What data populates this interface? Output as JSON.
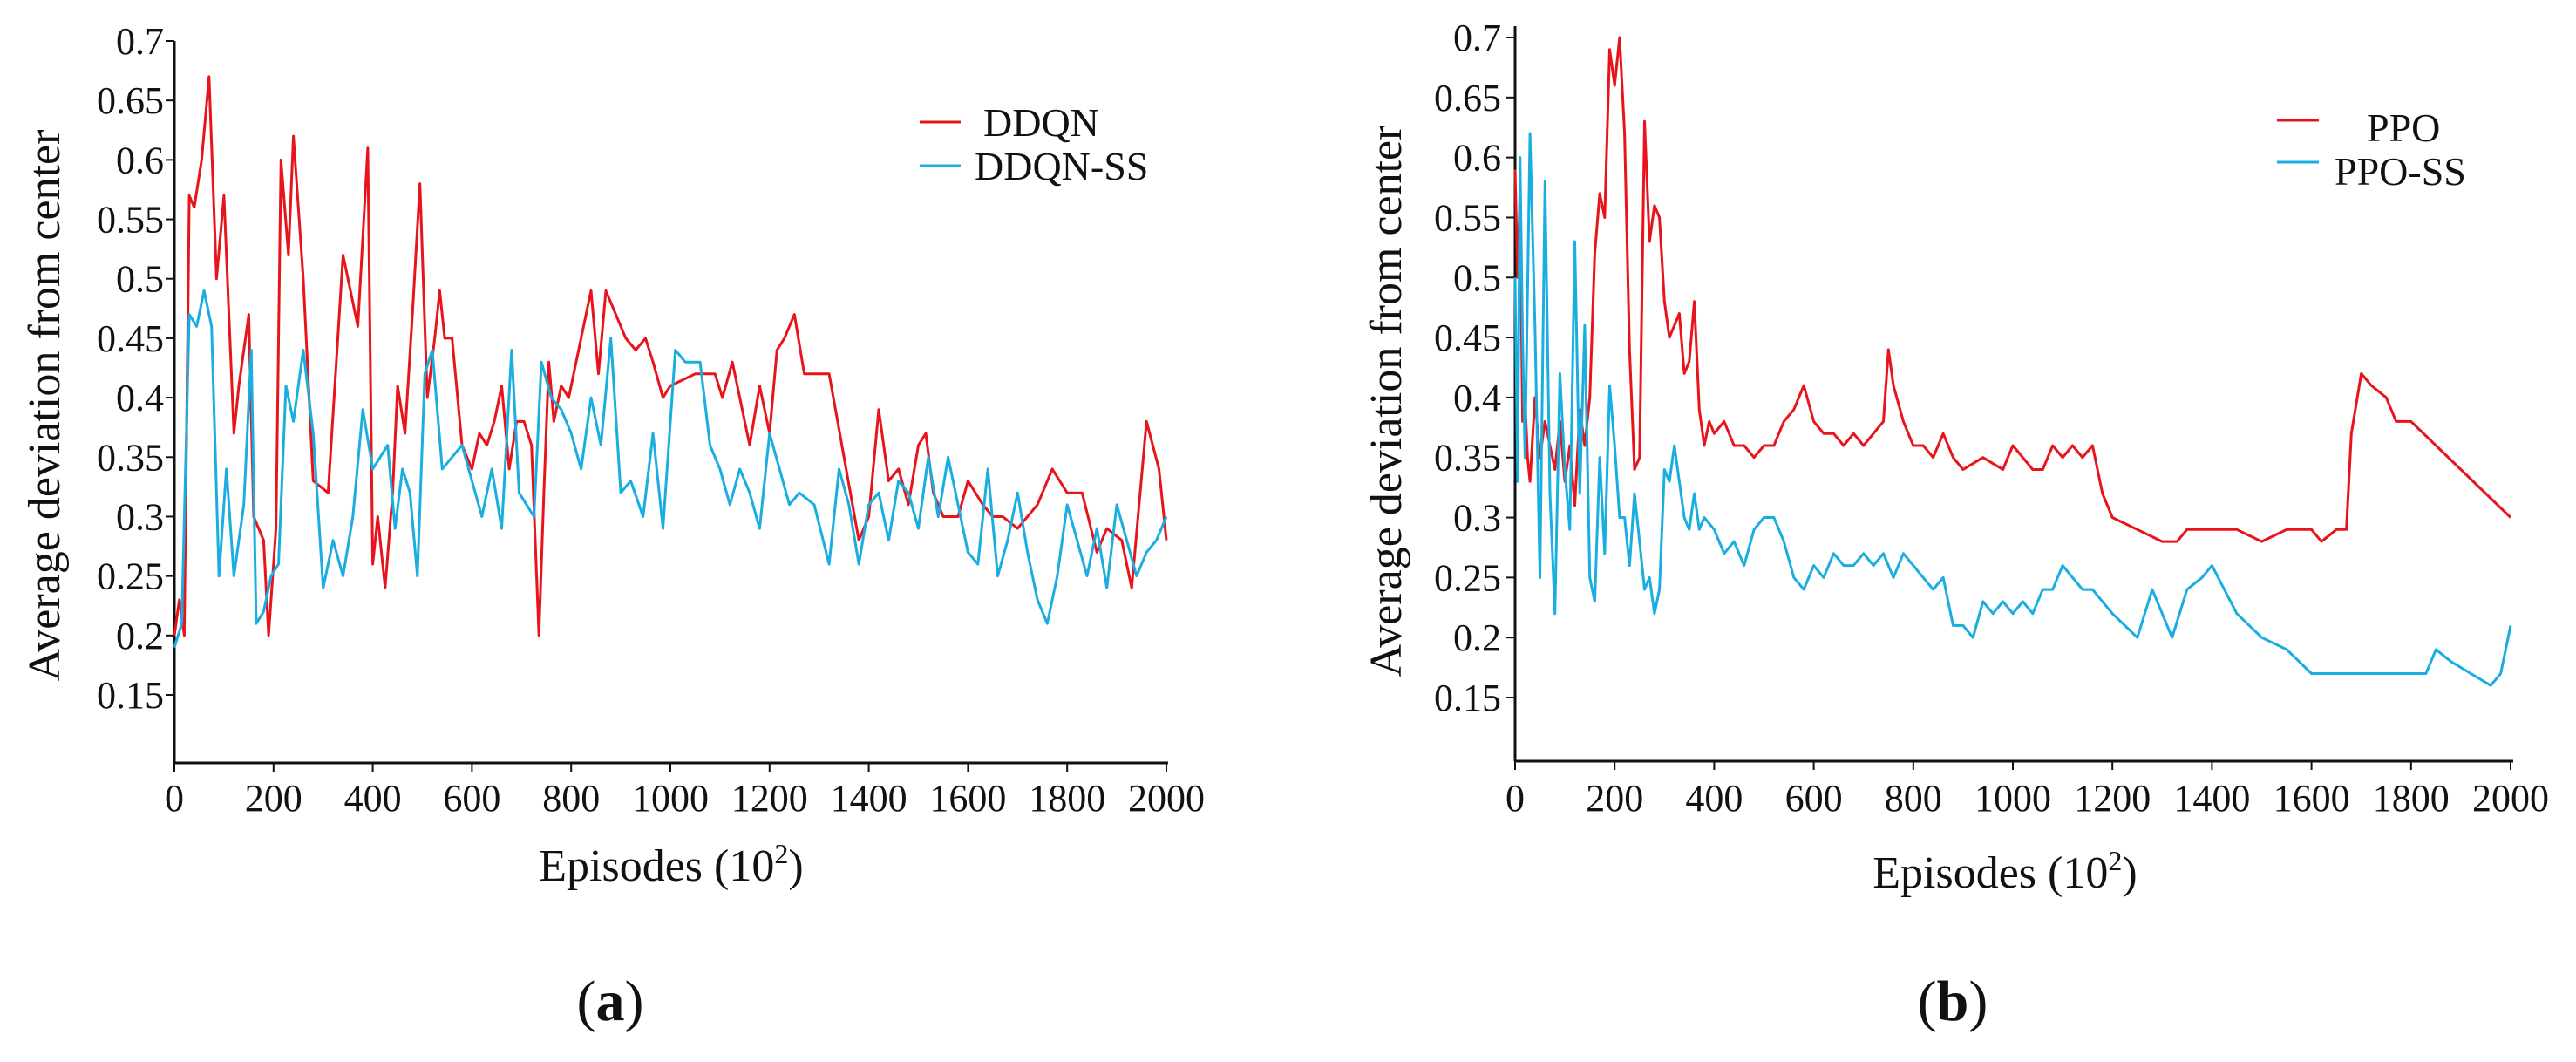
{
  "chart_data": [
    {
      "type": "line",
      "panel_label": "a",
      "xlabel": "Episodes (10",
      "xlabel_exponent": "2",
      "xlabel_close": ")",
      "ylabel": "Average deviation from center",
      "xlim": [
        0,
        2000
      ],
      "ylim": [
        0.1,
        0.7
      ],
      "xticks": [
        0,
        200,
        400,
        600,
        800,
        1000,
        1200,
        1400,
        1600,
        1800,
        2000
      ],
      "xtick_labels": [
        "0",
        "200",
        "400",
        "600",
        "800",
        "1000",
        "1200",
        "1400",
        "1600",
        "1800",
        "2000"
      ],
      "yticks": [
        0.15,
        0.2,
        0.25,
        0.3,
        0.35,
        0.4,
        0.45,
        0.5,
        0.55,
        0.6,
        0.65,
        0.7
      ],
      "ytick_labels": [
        "0.15",
        "0.2",
        "0.25",
        "0.3",
        "0.35",
        "0.4",
        "0.45",
        "0.5",
        "0.55",
        "0.6",
        "0.65",
        "0.7"
      ],
      "legend_position": "top-right",
      "series": [
        {
          "name": "DDQN",
          "color": "#e8141b",
          "x": [
            0,
            10,
            20,
            30,
            40,
            55,
            70,
            85,
            100,
            120,
            130,
            150,
            160,
            180,
            190,
            205,
            215,
            230,
            240,
            260,
            280,
            310,
            340,
            370,
            390,
            400,
            410,
            425,
            440,
            450,
            465,
            480,
            495,
            510,
            525,
            535,
            545,
            560,
            580,
            600,
            615,
            630,
            645,
            660,
            675,
            690,
            705,
            720,
            735,
            745,
            755,
            765,
            780,
            795,
            810,
            825,
            840,
            855,
            870,
            890,
            910,
            930,
            950,
            965,
            985,
            1000,
            1050,
            1075,
            1090,
            1105,
            1125,
            1160,
            1180,
            1200,
            1215,
            1230,
            1250,
            1270,
            1320,
            1350,
            1380,
            1400,
            1420,
            1440,
            1460,
            1480,
            1500,
            1515,
            1530,
            1550,
            1580,
            1600,
            1630,
            1650,
            1670,
            1700,
            1740,
            1770,
            1800,
            1830,
            1860,
            1880,
            1910,
            1930,
            1960,
            1985,
            2000
          ],
          "y": [
            0.2,
            0.23,
            0.2,
            0.57,
            0.56,
            0.6,
            0.67,
            0.5,
            0.57,
            0.37,
            0.41,
            0.47,
            0.3,
            0.28,
            0.2,
            0.29,
            0.6,
            0.52,
            0.62,
            0.5,
            0.33,
            0.32,
            0.52,
            0.46,
            0.61,
            0.26,
            0.3,
            0.24,
            0.32,
            0.41,
            0.37,
            0.47,
            0.58,
            0.4,
            0.45,
            0.49,
            0.45,
            0.45,
            0.36,
            0.34,
            0.37,
            0.36,
            0.38,
            0.41,
            0.34,
            0.38,
            0.38,
            0.36,
            0.2,
            0.32,
            0.43,
            0.38,
            0.41,
            0.4,
            0.43,
            0.46,
            0.49,
            0.42,
            0.49,
            0.47,
            0.45,
            0.44,
            0.45,
            0.43,
            0.4,
            0.41,
            0.42,
            0.42,
            0.42,
            0.4,
            0.43,
            0.36,
            0.41,
            0.37,
            0.44,
            0.45,
            0.47,
            0.42,
            0.42,
            0.35,
            0.28,
            0.3,
            0.39,
            0.33,
            0.34,
            0.31,
            0.36,
            0.37,
            0.32,
            0.3,
            0.3,
            0.33,
            0.31,
            0.3,
            0.3,
            0.29,
            0.31,
            0.34,
            0.32,
            0.32,
            0.27,
            0.29,
            0.28,
            0.24,
            0.38,
            0.34,
            0.28
          ]
        },
        {
          "name": "DDQN-SS",
          "color": "#1aaee0",
          "x": [
            0,
            15,
            30,
            45,
            60,
            75,
            90,
            105,
            120,
            140,
            155,
            165,
            180,
            195,
            210,
            225,
            240,
            260,
            280,
            300,
            320,
            340,
            360,
            380,
            400,
            415,
            430,
            445,
            460,
            475,
            490,
            505,
            520,
            540,
            560,
            580,
            600,
            620,
            640,
            660,
            680,
            695,
            710,
            725,
            740,
            760,
            780,
            800,
            820,
            840,
            860,
            880,
            900,
            920,
            945,
            965,
            985,
            1010,
            1030,
            1060,
            1080,
            1100,
            1120,
            1140,
            1160,
            1180,
            1200,
            1220,
            1240,
            1260,
            1290,
            1320,
            1340,
            1360,
            1380,
            1400,
            1420,
            1440,
            1460,
            1480,
            1500,
            1520,
            1540,
            1560,
            1580,
            1600,
            1620,
            1640,
            1660,
            1680,
            1700,
            1720,
            1740,
            1760,
            1780,
            1800,
            1820,
            1840,
            1860,
            1880,
            1900,
            1920,
            1940,
            1960,
            1980,
            2000
          ],
          "y": [
            0.19,
            0.21,
            0.47,
            0.46,
            0.49,
            0.46,
            0.25,
            0.34,
            0.25,
            0.31,
            0.44,
            0.21,
            0.22,
            0.25,
            0.26,
            0.41,
            0.38,
            0.44,
            0.37,
            0.24,
            0.28,
            0.25,
            0.3,
            0.39,
            0.34,
            0.35,
            0.36,
            0.29,
            0.34,
            0.32,
            0.25,
            0.42,
            0.44,
            0.34,
            0.35,
            0.36,
            0.33,
            0.3,
            0.34,
            0.29,
            0.44,
            0.32,
            0.31,
            0.3,
            0.43,
            0.4,
            0.39,
            0.37,
            0.34,
            0.4,
            0.36,
            0.45,
            0.32,
            0.33,
            0.3,
            0.37,
            0.29,
            0.44,
            0.43,
            0.43,
            0.36,
            0.34,
            0.31,
            0.34,
            0.32,
            0.29,
            0.37,
            0.34,
            0.31,
            0.32,
            0.31,
            0.26,
            0.34,
            0.31,
            0.26,
            0.31,
            0.32,
            0.28,
            0.33,
            0.32,
            0.29,
            0.35,
            0.3,
            0.35,
            0.31,
            0.27,
            0.26,
            0.34,
            0.25,
            0.28,
            0.32,
            0.27,
            0.23,
            0.21,
            0.25,
            0.31,
            0.28,
            0.25,
            0.29,
            0.24,
            0.31,
            0.28,
            0.25,
            0.27,
            0.28,
            0.3
          ]
        }
      ]
    },
    {
      "type": "line",
      "panel_label": "b",
      "xlabel": "Episodes (10",
      "xlabel_exponent": "2",
      "xlabel_close": ")",
      "ylabel": "Average deviation from center",
      "xlim": [
        0,
        2000
      ],
      "ylim": [
        0.1,
        0.7
      ],
      "xticks": [
        0,
        200,
        400,
        600,
        800,
        1000,
        1200,
        1400,
        1600,
        1800,
        2000
      ],
      "xtick_labels": [
        "0",
        "200",
        "400",
        "600",
        "800",
        "1000",
        "1200",
        "1400",
        "1600",
        "1800",
        "2000"
      ],
      "yticks": [
        0.15,
        0.2,
        0.25,
        0.3,
        0.35,
        0.4,
        0.45,
        0.5,
        0.55,
        0.6,
        0.65,
        0.7
      ],
      "ytick_labels": [
        "0.15",
        "0.2",
        "0.25",
        "0.3",
        "0.35",
        "0.4",
        "0.45",
        "0.5",
        "0.55",
        "0.6",
        "0.65",
        "0.7"
      ],
      "legend_position": "top-right",
      "series": [
        {
          "name": "PPO",
          "color": "#e8141b",
          "x": [
            0,
            5,
            10,
            15,
            20,
            25,
            30,
            40,
            50,
            60,
            70,
            80,
            90,
            100,
            110,
            120,
            130,
            140,
            150,
            160,
            170,
            180,
            190,
            200,
            210,
            220,
            230,
            240,
            250,
            260,
            270,
            280,
            290,
            300,
            310,
            320,
            330,
            340,
            350,
            360,
            370,
            380,
            390,
            400,
            420,
            440,
            460,
            480,
            500,
            520,
            540,
            560,
            580,
            600,
            620,
            640,
            660,
            680,
            700,
            720,
            740,
            750,
            760,
            780,
            800,
            820,
            840,
            860,
            880,
            900,
            940,
            980,
            1000,
            1020,
            1040,
            1060,
            1080,
            1100,
            1120,
            1140,
            1160,
            1180,
            1200,
            1250,
            1300,
            1330,
            1350,
            1400,
            1450,
            1500,
            1550,
            1600,
            1620,
            1650,
            1670,
            1680,
            1700,
            1720,
            1750,
            1770,
            1800,
            1850,
            1900,
            1950,
            2000
          ],
          "y": [
            0.59,
            0.5,
            0.57,
            0.38,
            0.4,
            0.35,
            0.33,
            0.4,
            0.35,
            0.38,
            0.36,
            0.34,
            0.38,
            0.33,
            0.36,
            0.31,
            0.39,
            0.36,
            0.4,
            0.52,
            0.57,
            0.55,
            0.69,
            0.66,
            0.7,
            0.62,
            0.44,
            0.34,
            0.35,
            0.63,
            0.53,
            0.56,
            0.55,
            0.48,
            0.45,
            0.46,
            0.47,
            0.42,
            0.43,
            0.48,
            0.39,
            0.36,
            0.38,
            0.37,
            0.38,
            0.36,
            0.36,
            0.35,
            0.36,
            0.36,
            0.38,
            0.39,
            0.41,
            0.38,
            0.37,
            0.37,
            0.36,
            0.37,
            0.36,
            0.37,
            0.38,
            0.44,
            0.41,
            0.38,
            0.36,
            0.36,
            0.35,
            0.37,
            0.35,
            0.34,
            0.35,
            0.34,
            0.36,
            0.35,
            0.34,
            0.34,
            0.36,
            0.35,
            0.36,
            0.35,
            0.36,
            0.32,
            0.3,
            0.29,
            0.28,
            0.28,
            0.29,
            0.29,
            0.29,
            0.28,
            0.29,
            0.29,
            0.28,
            0.29,
            0.29,
            0.37,
            0.42,
            0.41,
            0.4,
            0.38,
            0.38,
            0.36,
            0.34,
            0.32,
            0.3
          ]
        },
        {
          "name": "PPO-SS",
          "color": "#1aaee0",
          "x": [
            0,
            5,
            10,
            15,
            20,
            30,
            40,
            50,
            60,
            70,
            80,
            90,
            100,
            110,
            120,
            130,
            140,
            150,
            160,
            170,
            180,
            190,
            200,
            210,
            220,
            230,
            240,
            250,
            260,
            270,
            280,
            290,
            300,
            310,
            320,
            330,
            340,
            350,
            360,
            370,
            380,
            400,
            420,
            440,
            460,
            480,
            500,
            520,
            540,
            560,
            580,
            600,
            620,
            640,
            660,
            680,
            700,
            720,
            740,
            760,
            780,
            800,
            820,
            840,
            860,
            880,
            900,
            920,
            940,
            960,
            980,
            1000,
            1020,
            1040,
            1060,
            1080,
            1100,
            1120,
            1140,
            1160,
            1180,
            1200,
            1250,
            1280,
            1300,
            1320,
            1350,
            1380,
            1400,
            1450,
            1500,
            1550,
            1600,
            1650,
            1700,
            1750,
            1800,
            1830,
            1850,
            1880,
            1920,
            1960,
            1980,
            2000
          ],
          "y": [
            0.5,
            0.33,
            0.6,
            0.45,
            0.35,
            0.62,
            0.46,
            0.25,
            0.58,
            0.32,
            0.22,
            0.42,
            0.34,
            0.29,
            0.53,
            0.32,
            0.46,
            0.25,
            0.23,
            0.35,
            0.27,
            0.41,
            0.36,
            0.3,
            0.3,
            0.26,
            0.32,
            0.28,
            0.24,
            0.25,
            0.22,
            0.24,
            0.34,
            0.33,
            0.36,
            0.33,
            0.3,
            0.29,
            0.32,
            0.29,
            0.3,
            0.29,
            0.27,
            0.28,
            0.26,
            0.29,
            0.3,
            0.3,
            0.28,
            0.25,
            0.24,
            0.26,
            0.25,
            0.27,
            0.26,
            0.26,
            0.27,
            0.26,
            0.27,
            0.25,
            0.27,
            0.26,
            0.25,
            0.24,
            0.25,
            0.21,
            0.21,
            0.2,
            0.23,
            0.22,
            0.23,
            0.22,
            0.23,
            0.22,
            0.24,
            0.24,
            0.26,
            0.25,
            0.24,
            0.24,
            0.23,
            0.22,
            0.2,
            0.24,
            0.22,
            0.2,
            0.24,
            0.25,
            0.26,
            0.22,
            0.2,
            0.19,
            0.17,
            0.17,
            0.17,
            0.17,
            0.17,
            0.17,
            0.19,
            0.18,
            0.17,
            0.16,
            0.17,
            0.21
          ]
        }
      ]
    }
  ]
}
